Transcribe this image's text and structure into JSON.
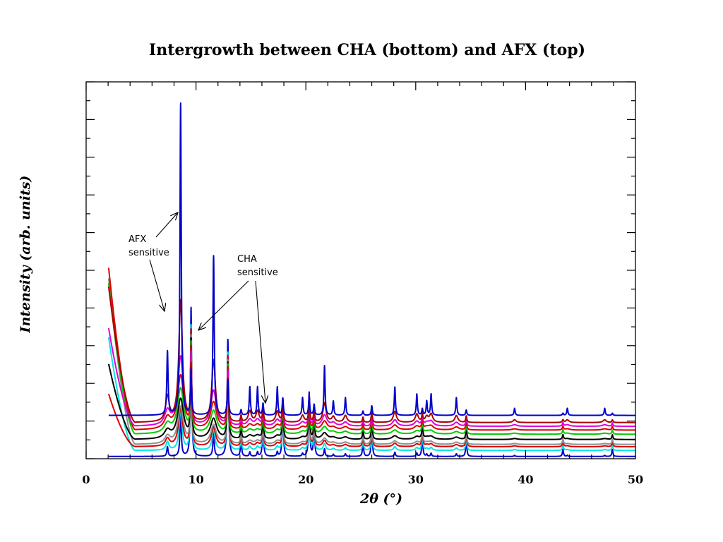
{
  "chart_data": {
    "type": "line",
    "title": "Intergrowth between CHA (bottom) and AFX (top)",
    "xlabel": "2θ (°)",
    "ylabel": "Intensity (arb. units)",
    "xlim": [
      0,
      50
    ],
    "ylim": [
      0,
      100
    ],
    "x_ticks": [
      0,
      10,
      20,
      30,
      40,
      50
    ],
    "x_tick_labels": [
      "0",
      "10",
      "20",
      "30",
      "40",
      "50"
    ],
    "y_tick_labels_shown": false,
    "grid": false,
    "legend": "none",
    "peaks": [
      {
        "x": 7.4,
        "h": 0.18,
        "w": 0.07,
        "afx": true
      },
      {
        "x": 8.6,
        "h": 0.88,
        "w": 0.07,
        "afx": true
      },
      {
        "x": 9.55,
        "h": 0.42,
        "w": 0.06,
        "afx": false
      },
      {
        "x": 11.6,
        "h": 0.45,
        "w": 0.07,
        "afx": true
      },
      {
        "x": 12.9,
        "h": 0.33,
        "w": 0.07,
        "afx": false
      },
      {
        "x": 14.1,
        "h": 0.05,
        "w": 0.06,
        "afx": false
      },
      {
        "x": 14.9,
        "h": 0.08,
        "w": 0.06,
        "afx": true
      },
      {
        "x": 15.6,
        "h": 0.08,
        "w": 0.06,
        "afx": true
      },
      {
        "x": 16.1,
        "h": 0.11,
        "w": 0.06,
        "afx": false
      },
      {
        "x": 17.4,
        "h": 0.08,
        "w": 0.06,
        "afx": true
      },
      {
        "x": 17.9,
        "h": 0.16,
        "w": 0.06,
        "afx": false
      },
      {
        "x": 19.7,
        "h": 0.05,
        "w": 0.06,
        "afx": true
      },
      {
        "x": 20.3,
        "h": 0.18,
        "w": 0.06,
        "afx": false
      },
      {
        "x": 20.75,
        "h": 0.1,
        "w": 0.06,
        "afx": false
      },
      {
        "x": 21.7,
        "h": 0.14,
        "w": 0.06,
        "afx": true
      },
      {
        "x": 22.5,
        "h": 0.04,
        "w": 0.06,
        "afx": true
      },
      {
        "x": 23.6,
        "h": 0.05,
        "w": 0.06,
        "afx": true
      },
      {
        "x": 25.2,
        "h": 0.04,
        "w": 0.06,
        "afx": false
      },
      {
        "x": 26.0,
        "h": 0.09,
        "w": 0.06,
        "afx": false
      },
      {
        "x": 28.1,
        "h": 0.08,
        "w": 0.06,
        "afx": true
      },
      {
        "x": 30.1,
        "h": 0.06,
        "w": 0.06,
        "afx": true
      },
      {
        "x": 30.6,
        "h": 0.06,
        "w": 0.06,
        "afx": false
      },
      {
        "x": 31.0,
        "h": 0.04,
        "w": 0.06,
        "afx": true
      },
      {
        "x": 31.4,
        "h": 0.06,
        "w": 0.06,
        "afx": true
      },
      {
        "x": 33.7,
        "h": 0.05,
        "w": 0.06,
        "afx": true
      },
      {
        "x": 34.6,
        "h": 0.05,
        "w": 0.06,
        "afx": false
      },
      {
        "x": 39.0,
        "h": 0.02,
        "w": 0.06,
        "afx": true
      },
      {
        "x": 43.4,
        "h": 0.02,
        "w": 0.06,
        "afx": false
      },
      {
        "x": 43.8,
        "h": 0.02,
        "w": 0.06,
        "afx": true
      },
      {
        "x": 47.2,
        "h": 0.02,
        "w": 0.06,
        "afx": true
      },
      {
        "x": 47.9,
        "h": 0.02,
        "w": 0.06,
        "afx": false
      }
    ],
    "series": [
      {
        "color": "#0000cc",
        "afx_fraction": 0.0,
        "offset": 0.0,
        "lowangle": 0.0,
        "scale": 1.0
      },
      {
        "color": "#00e5e5",
        "afx_fraction": 0.1,
        "offset": 1.6,
        "lowangle": 30,
        "scale": 0.9
      },
      {
        "color": "#dd0000",
        "afx_fraction": 0.2,
        "offset": 2.6,
        "lowangle": 14,
        "scale": 0.9
      },
      {
        "color": "#909090",
        "afx_fraction": 0.3,
        "offset": 3.2,
        "lowangle": 44,
        "scale": 0.9
      },
      {
        "color": "#000000",
        "afx_fraction": 0.4,
        "offset": 4.5,
        "lowangle": 20,
        "scale": 0.9
      },
      {
        "color": "#00cc00",
        "afx_fraction": 0.5,
        "offset": 5.9,
        "lowangle": 40,
        "scale": 0.9
      },
      {
        "color": "#dd0000",
        "afx_fraction": 0.6,
        "offset": 7.0,
        "lowangle": 43,
        "scale": 0.9
      },
      {
        "color": "#dd00dd",
        "afx_fraction": 0.7,
        "offset": 8.0,
        "lowangle": 26,
        "scale": 0.9
      },
      {
        "color": "#aa0000",
        "afx_fraction": 0.85,
        "offset": 9.0,
        "lowangle": 36,
        "scale": 0.9
      },
      {
        "color": "#0000cc",
        "afx_fraction": 1.0,
        "offset": 10.9,
        "lowangle": 0.0,
        "scale": 1.0
      }
    ],
    "annotations": [
      {
        "lines": [
          "AFX",
          "sensitive"
        ]
      },
      {
        "lines": [
          "CHA",
          "sensitive"
        ]
      }
    ]
  }
}
